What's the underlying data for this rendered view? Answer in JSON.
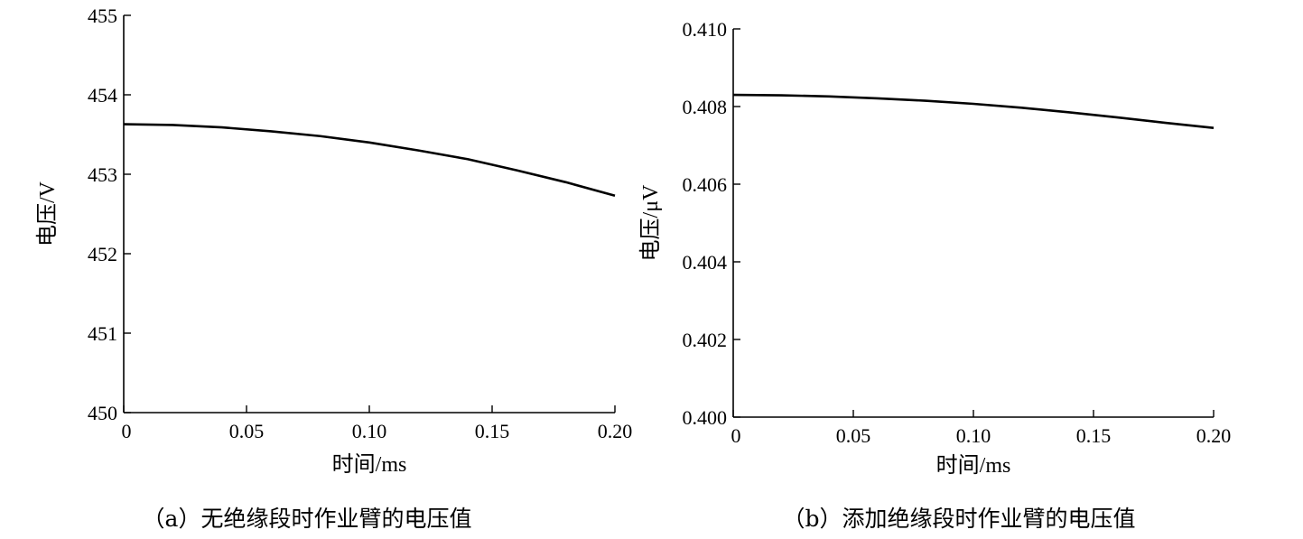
{
  "chart_data": [
    {
      "type": "line",
      "caption": "（a）无绝缘段时作业臂的电压值",
      "xlabel": "时间/ms",
      "ylabel": "电压/V",
      "xlim": [
        0,
        0.2
      ],
      "ylim": [
        450,
        455
      ],
      "xticks": [
        "0",
        "0.05",
        "0.10",
        "0.15",
        "0.20"
      ],
      "xtick_values": [
        0,
        0.05,
        0.1,
        0.15,
        0.2
      ],
      "yticks": [
        "450",
        "451",
        "452",
        "453",
        "454",
        "455"
      ],
      "ytick_values": [
        450,
        451,
        452,
        453,
        454,
        455
      ],
      "grid": false,
      "series": [
        {
          "x": [
            0,
            0.02,
            0.04,
            0.06,
            0.08,
            0.1,
            0.12,
            0.14,
            0.16,
            0.18,
            0.2
          ],
          "y": [
            453.63,
            453.62,
            453.59,
            453.54,
            453.48,
            453.4,
            453.3,
            453.19,
            453.05,
            452.9,
            452.73
          ]
        }
      ]
    },
    {
      "type": "line",
      "caption": "（b）添加绝缘段时作业臂的电压值",
      "xlabel": "时间/ms",
      "ylabel": "电压/μV",
      "xlim": [
        0,
        0.2
      ],
      "ylim": [
        0.4,
        0.41
      ],
      "xticks": [
        "0",
        "0.05",
        "0.10",
        "0.15",
        "0.20"
      ],
      "xtick_values": [
        0,
        0.05,
        0.1,
        0.15,
        0.2
      ],
      "yticks": [
        "0.400",
        "0.402",
        "0.404",
        "0.406",
        "0.408",
        "0.410"
      ],
      "ytick_values": [
        0.4,
        0.402,
        0.404,
        0.406,
        0.408,
        0.41
      ],
      "grid": false,
      "series": [
        {
          "x": [
            0,
            0.02,
            0.04,
            0.06,
            0.08,
            0.1,
            0.12,
            0.14,
            0.16,
            0.18,
            0.2
          ],
          "y": [
            0.4083,
            0.40829,
            0.40826,
            0.40821,
            0.40815,
            0.40807,
            0.40797,
            0.40785,
            0.40772,
            0.40758,
            0.40745
          ]
        }
      ]
    }
  ]
}
